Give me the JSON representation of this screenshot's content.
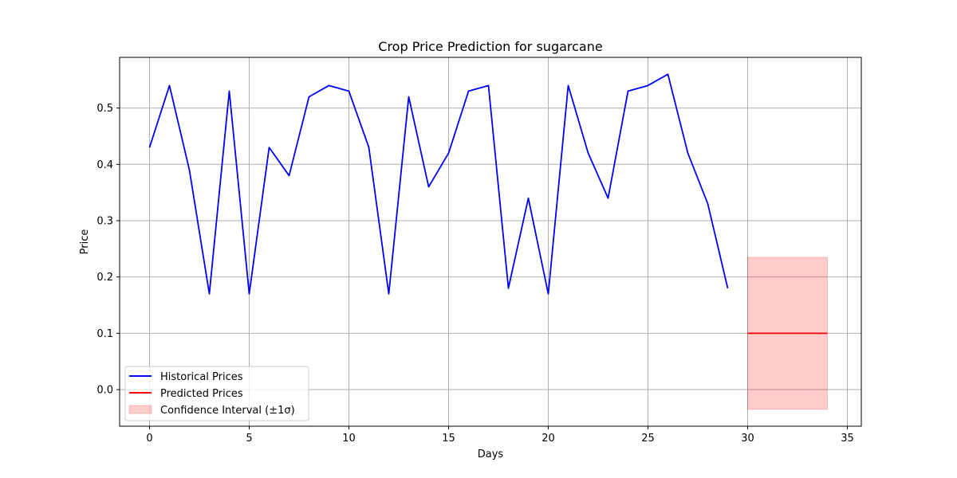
{
  "chart_data": {
    "type": "line",
    "title": "Crop Price Prediction for sugarcane",
    "xlabel": "Days",
    "ylabel": "Price",
    "xlim": [
      -1.5,
      35.7
    ],
    "ylim": [
      -0.065,
      0.59
    ],
    "xticks": [
      0,
      5,
      10,
      15,
      20,
      25,
      30,
      35
    ],
    "yticks": [
      0.0,
      0.1,
      0.2,
      0.3,
      0.4,
      0.5
    ],
    "grid": true,
    "legend_position": "lower-left",
    "series": [
      {
        "name": "Historical Prices",
        "color": "#0000ff",
        "x": [
          0,
          1,
          2,
          3,
          4,
          5,
          6,
          7,
          8,
          9,
          10,
          11,
          12,
          13,
          14,
          15,
          16,
          17,
          18,
          19,
          20,
          21,
          22,
          23,
          24,
          25,
          26,
          27,
          28,
          29
        ],
        "y": [
          0.43,
          0.54,
          0.39,
          0.17,
          0.53,
          0.17,
          0.43,
          0.38,
          0.52,
          0.54,
          0.53,
          0.43,
          0.17,
          0.52,
          0.36,
          0.42,
          0.53,
          0.54,
          0.18,
          0.34,
          0.17,
          0.54,
          0.42,
          0.34,
          0.53,
          0.54,
          0.56,
          0.42,
          0.33,
          0.18
        ]
      },
      {
        "name": "Predicted Prices",
        "color": "#ff0000",
        "x": [
          30,
          31,
          32,
          33,
          34
        ],
        "y": [
          0.1,
          0.1,
          0.1,
          0.1,
          0.1
        ]
      }
    ],
    "confidence_interval": {
      "name": "Confidence Interval (±1σ)",
      "color": "#ff0000",
      "x": [
        30,
        34
      ],
      "lower": -0.035,
      "upper": 0.235
    }
  }
}
